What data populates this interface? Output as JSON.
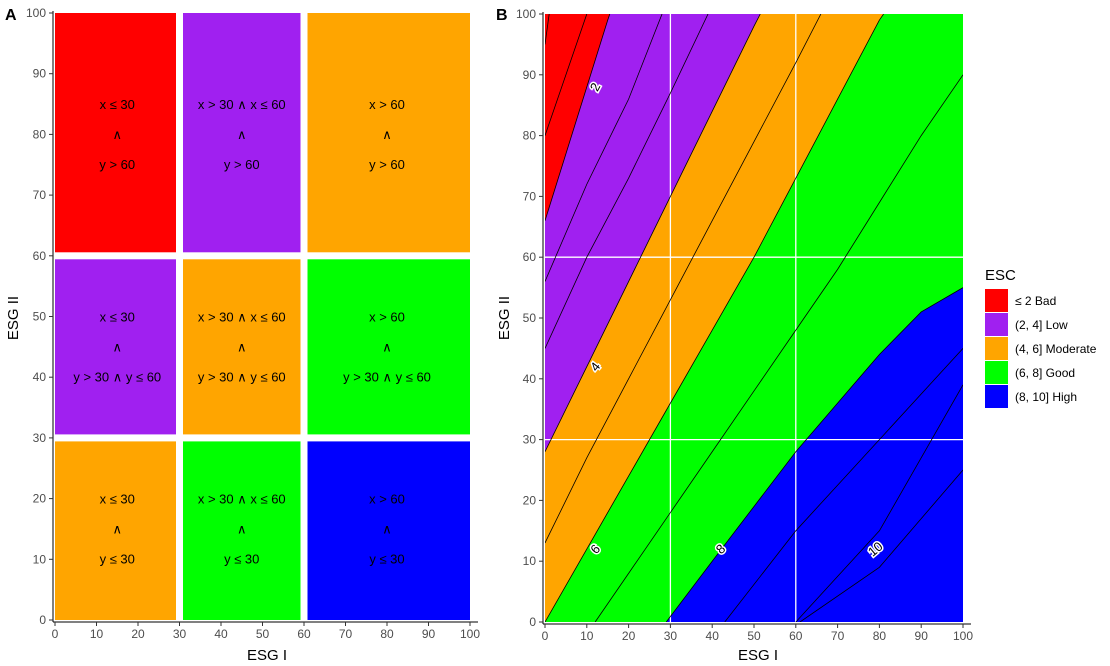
{
  "chart_data": [
    {
      "type": "heatmap",
      "panel_label": "A",
      "xlabel": "ESG I",
      "ylabel": "ESG II",
      "xlim": [
        0,
        100
      ],
      "ylim": [
        0,
        100
      ],
      "x_ticks": [
        0,
        10,
        20,
        30,
        40,
        50,
        60,
        70,
        80,
        90,
        100
      ],
      "y_ticks": [
        0,
        10,
        20,
        30,
        40,
        50,
        60,
        70,
        80,
        90,
        100
      ],
      "cells": [
        {
          "x_range": [
            0,
            30
          ],
          "y_range": [
            60,
            100
          ],
          "category": "≤ 2 Bad",
          "lines": [
            "x ≤ 30",
            "∧",
            "y > 60"
          ]
        },
        {
          "x_range": [
            30,
            60
          ],
          "y_range": [
            60,
            100
          ],
          "category": "(2, 4] Low",
          "lines": [
            "x > 30 ∧ x ≤ 60",
            "∧",
            "y > 60"
          ]
        },
        {
          "x_range": [
            60,
            100
          ],
          "y_range": [
            60,
            100
          ],
          "category": "(4, 6] Moderate",
          "lines": [
            "x > 60",
            "∧",
            "y > 60"
          ]
        },
        {
          "x_range": [
            0,
            30
          ],
          "y_range": [
            30,
            60
          ],
          "category": "(2, 4] Low",
          "lines": [
            "x ≤ 30",
            "∧",
            "y > 30 ∧ y ≤ 60"
          ]
        },
        {
          "x_range": [
            30,
            60
          ],
          "y_range": [
            30,
            60
          ],
          "category": "(4, 6] Moderate",
          "lines": [
            "x > 30 ∧ x ≤ 60",
            "∧",
            "y > 30 ∧ y ≤ 60"
          ]
        },
        {
          "x_range": [
            60,
            100
          ],
          "y_range": [
            30,
            60
          ],
          "category": "(6, 8] Good",
          "lines": [
            "x > 60",
            "∧",
            "y > 30 ∧ y ≤ 60"
          ]
        },
        {
          "x_range": [
            0,
            30
          ],
          "y_range": [
            0,
            30
          ],
          "category": "(4, 6] Moderate",
          "lines": [
            "x ≤ 30",
            "∧",
            "y ≤ 30"
          ]
        },
        {
          "x_range": [
            30,
            60
          ],
          "y_range": [
            0,
            30
          ],
          "category": "(6, 8] Good",
          "lines": [
            "x > 30 ∧ x ≤ 60",
            "∧",
            "y ≤ 30"
          ]
        },
        {
          "x_range": [
            60,
            100
          ],
          "y_range": [
            0,
            30
          ],
          "category": "(8, 10] High",
          "lines": [
            "x > 60",
            "∧",
            "y ≤ 30"
          ]
        }
      ]
    },
    {
      "type": "area",
      "panel_label": "B",
      "xlabel": "ESG I",
      "ylabel": "ESG II",
      "xlim": [
        0,
        100
      ],
      "ylim": [
        0,
        100
      ],
      "x_ticks": [
        0,
        10,
        20,
        30,
        40,
        50,
        60,
        70,
        80,
        90,
        100
      ],
      "y_ticks": [
        0,
        10,
        20,
        30,
        40,
        50,
        60,
        70,
        80,
        90,
        100
      ],
      "grid_lines": {
        "x": [
          30,
          60
        ],
        "y": [
          30,
          60
        ]
      },
      "boundaries": [
        {
          "level": 2,
          "points": [
            [
              0,
              66
            ],
            [
              5,
              77
            ],
            [
              10,
              88
            ],
            [
              15,
              99
            ],
            [
              15.5,
              100
            ]
          ]
        },
        {
          "level": 4,
          "points": [
            [
              0,
              28
            ],
            [
              10,
              42
            ],
            [
              20,
              56
            ],
            [
              30,
              70
            ],
            [
              40,
              84
            ],
            [
              50,
              98
            ],
            [
              51.5,
              100
            ]
          ]
        },
        {
          "level": 6,
          "points": [
            [
              0,
              0
            ],
            [
              10,
              12
            ],
            [
              20,
              24
            ],
            [
              30,
              36
            ],
            [
              40,
              48
            ],
            [
              50,
              60
            ],
            [
              60,
              73
            ],
            [
              70,
              86
            ],
            [
              80,
              99
            ],
            [
              81,
              100
            ]
          ]
        },
        {
          "level": 8,
          "points": [
            [
              29,
              0
            ],
            [
              40,
              10
            ],
            [
              50,
              19
            ],
            [
              60,
              28
            ],
            [
              70,
              36
            ],
            [
              80,
              44
            ],
            [
              90,
              51
            ],
            [
              100,
              55
            ]
          ]
        }
      ],
      "contour_lines": [
        {
          "points": [
            [
              0,
              95
            ],
            [
              1,
              100
            ]
          ]
        },
        {
          "points": [
            [
              0,
              80
            ],
            [
              10,
              100
            ]
          ]
        },
        {
          "points": [
            [
              0,
              66
            ],
            [
              5,
              77
            ],
            [
              10,
              88
            ],
            [
              15,
              99
            ],
            [
              15.5,
              100
            ]
          ]
        },
        {
          "points": [
            [
              0,
              56
            ],
            [
              10,
              72
            ],
            [
              20,
              86
            ],
            [
              28,
              100
            ]
          ]
        },
        {
          "points": [
            [
              0,
              45
            ],
            [
              10,
              60
            ],
            [
              20,
              73
            ],
            [
              30,
              87
            ],
            [
              39,
              100
            ]
          ]
        },
        {
          "points": [
            [
              0,
              28
            ],
            [
              10,
              42
            ],
            [
              20,
              56
            ],
            [
              30,
              70
            ],
            [
              40,
              84
            ],
            [
              50,
              98
            ],
            [
              51.5,
              100
            ]
          ]
        },
        {
          "points": [
            [
              0,
              13
            ],
            [
              10,
              27
            ],
            [
              20,
              40
            ],
            [
              30,
              53
            ],
            [
              40,
              66
            ],
            [
              50,
              79
            ],
            [
              60,
              92
            ],
            [
              66,
              100
            ]
          ]
        },
        {
          "points": [
            [
              0,
              0
            ],
            [
              10,
              12
            ],
            [
              20,
              24
            ],
            [
              30,
              36
            ],
            [
              40,
              48
            ],
            [
              50,
              60
            ],
            [
              60,
              73
            ],
            [
              70,
              86
            ],
            [
              80,
              99
            ],
            [
              81,
              100
            ]
          ]
        },
        {
          "points": [
            [
              12,
              0
            ],
            [
              20,
              8
            ],
            [
              30,
              18
            ],
            [
              40,
              28
            ],
            [
              50,
              38
            ],
            [
              60,
              48
            ],
            [
              70,
              58
            ],
            [
              80,
              69
            ],
            [
              90,
              80
            ],
            [
              100,
              90
            ]
          ]
        },
        {
          "points": [
            [
              29,
              0
            ],
            [
              40,
              10
            ],
            [
              50,
              19
            ],
            [
              60,
              28
            ],
            [
              70,
              36
            ],
            [
              80,
              44
            ],
            [
              90,
              51
            ],
            [
              100,
              55
            ]
          ]
        },
        {
          "points": [
            [
              43,
              0
            ],
            [
              60,
              15
            ],
            [
              80,
              30
            ],
            [
              100,
              45
            ]
          ]
        },
        {
          "points": [
            [
              60,
              0
            ],
            [
              80,
              15
            ],
            [
              100,
              39
            ]
          ]
        },
        {
          "points": [
            [
              61,
              0
            ],
            [
              80,
              9
            ],
            [
              100,
              25
            ]
          ]
        }
      ],
      "contour_labels": [
        {
          "text": "2",
          "x": 12,
          "y": 88,
          "angle": -62
        },
        {
          "text": "4",
          "x": 12,
          "y": 42,
          "angle": -52
        },
        {
          "text": "6",
          "x": 12,
          "y": 12,
          "angle": -48
        },
        {
          "text": "8",
          "x": 42,
          "y": 12,
          "angle": -42
        },
        {
          "text": "10",
          "x": 79,
          "y": 12,
          "angle": -40
        }
      ]
    }
  ],
  "legend": {
    "title": "ESC",
    "placement": "right",
    "items": [
      {
        "label": "≤ 2 Bad",
        "color": "#ff0000"
      },
      {
        "label": "(2, 4] Low",
        "color": "#a020f0"
      },
      {
        "label": "(4, 6] Moderate",
        "color": "#ffa500"
      },
      {
        "label": "(6, 8] Good",
        "color": "#00ff00"
      },
      {
        "label": "(8, 10] High",
        "color": "#0000ff"
      }
    ]
  },
  "colors": {
    "≤ 2 Bad": "#ff0000",
    "(2, 4] Low": "#a020f0",
    "(4, 6] Moderate": "#ffa500",
    "(6, 8] Good": "#00ff00",
    "(8, 10] High": "#0000ff"
  }
}
